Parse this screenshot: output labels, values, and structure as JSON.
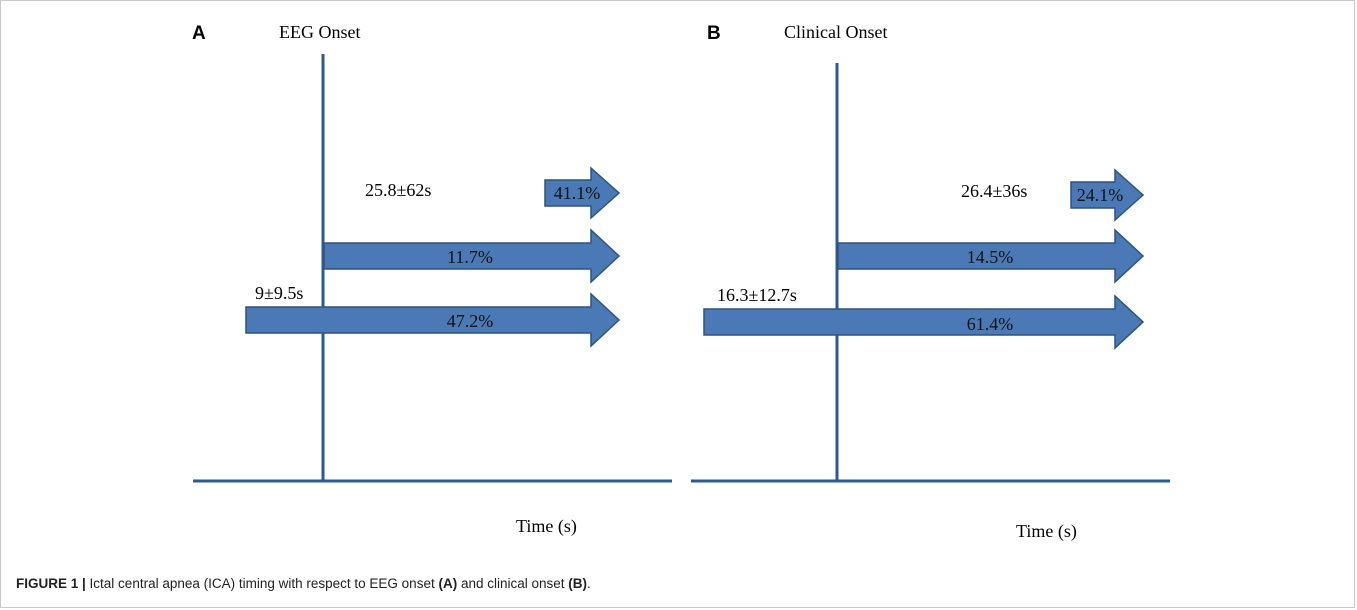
{
  "figure": {
    "accent_color": "#4a79b6",
    "arrow_stroke": "#2c5480",
    "axis_color": "#2f5a8f",
    "panels": [
      {
        "letter": "A",
        "onset_label": "EEG Onset",
        "time_label": "Time (s)",
        "timing_labels": [
          {
            "text": "25.8±62s"
          },
          {
            "text": "9±9.5s"
          }
        ],
        "arrows": [
          {
            "label": "41.1%"
          },
          {
            "label": "11.7%"
          },
          {
            "label": "47.2%"
          }
        ]
      },
      {
        "letter": "B",
        "onset_label": "Clinical Onset",
        "time_label": "Time (s)",
        "timing_labels": [
          {
            "text": "26.4±36s"
          },
          {
            "text": "16.3±12.7s"
          }
        ],
        "arrows": [
          {
            "label": "24.1%"
          },
          {
            "label": "14.5%"
          },
          {
            "label": "61.4%"
          }
        ]
      }
    ]
  },
  "caption": {
    "figure_num": "FIGURE 1 |",
    "text_1": " Ictal central apnea (ICA) timing with respect to EEG onset ",
    "ref_a": "(A)",
    "text_2": " and clinical onset ",
    "ref_b": "(B)",
    "text_3": "."
  }
}
